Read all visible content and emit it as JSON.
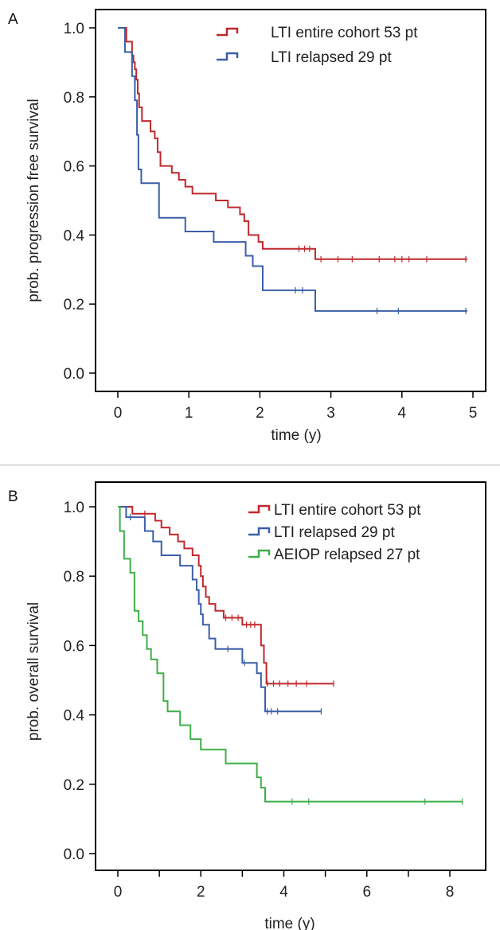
{
  "chart_data": [
    {
      "panel": "A",
      "type": "line",
      "xlabel": "time (y)",
      "ylabel": "prob. progression free survival",
      "xlim": [
        0,
        5
      ],
      "ylim": [
        0,
        1
      ],
      "xticks": [
        "0",
        "1",
        "2",
        "3",
        "4",
        "5"
      ],
      "xtick_values": [
        0,
        1,
        2,
        3,
        4,
        5
      ],
      "yticks": [
        "0.0",
        "0.2",
        "0.4",
        "0.6",
        "0.8",
        "1.0"
      ],
      "ytick_values": [
        0,
        0.2,
        0.4,
        0.6,
        0.8,
        1.0
      ],
      "legend_position": "top-right",
      "series": [
        {
          "name": "LTI entire cohort 53 pt",
          "color": "#c0282d",
          "steps": [
            [
              0,
              1.0
            ],
            [
              0.12,
              0.96
            ],
            [
              0.2,
              0.92
            ],
            [
              0.22,
              0.9
            ],
            [
              0.24,
              0.88
            ],
            [
              0.26,
              0.85
            ],
            [
              0.28,
              0.81
            ],
            [
              0.3,
              0.77
            ],
            [
              0.34,
              0.73
            ],
            [
              0.46,
              0.7
            ],
            [
              0.52,
              0.68
            ],
            [
              0.56,
              0.64
            ],
            [
              0.6,
              0.6
            ],
            [
              0.76,
              0.58
            ],
            [
              0.86,
              0.56
            ],
            [
              0.95,
              0.54
            ],
            [
              1.05,
              0.52
            ],
            [
              1.38,
              0.5
            ],
            [
              1.55,
              0.48
            ],
            [
              1.72,
              0.46
            ],
            [
              1.78,
              0.44
            ],
            [
              1.84,
              0.4
            ],
            [
              1.98,
              0.38
            ],
            [
              2.04,
              0.36
            ],
            [
              2.78,
              0.33
            ],
            [
              4.92,
              0.33
            ]
          ],
          "censors": [
            [
              2.55,
              0.36
            ],
            [
              2.63,
              0.36
            ],
            [
              2.7,
              0.36
            ],
            [
              2.86,
              0.33
            ],
            [
              3.1,
              0.33
            ],
            [
              3.3,
              0.33
            ],
            [
              3.68,
              0.33
            ],
            [
              3.9,
              0.33
            ],
            [
              4.0,
              0.33
            ],
            [
              4.1,
              0.33
            ],
            [
              4.35,
              0.33
            ],
            [
              4.9,
              0.33
            ]
          ]
        },
        {
          "name": "LTI relapsed 29 pt",
          "color": "#3a5fa8",
          "steps": [
            [
              0,
              1.0
            ],
            [
              0.1,
              0.93
            ],
            [
              0.2,
              0.86
            ],
            [
              0.24,
              0.79
            ],
            [
              0.27,
              0.69
            ],
            [
              0.29,
              0.59
            ],
            [
              0.33,
              0.55
            ],
            [
              0.58,
              0.45
            ],
            [
              0.95,
              0.41
            ],
            [
              1.35,
              0.38
            ],
            [
              1.8,
              0.34
            ],
            [
              1.9,
              0.31
            ],
            [
              2.04,
              0.24
            ],
            [
              2.78,
              0.18
            ],
            [
              4.92,
              0.18
            ]
          ],
          "censors": [
            [
              2.5,
              0.24
            ],
            [
              2.6,
              0.24
            ],
            [
              3.65,
              0.18
            ],
            [
              3.95,
              0.18
            ],
            [
              4.9,
              0.18
            ]
          ]
        }
      ]
    },
    {
      "panel": "B",
      "type": "line",
      "xlabel": "time (y)",
      "ylabel": "prob. overall survival",
      "xlim": [
        -0.5,
        8.8
      ],
      "ylim": [
        0,
        1
      ],
      "xticks": [
        "0",
        "2",
        "4",
        "6",
        "8"
      ],
      "xtick_values": [
        0,
        2,
        4,
        6,
        8
      ],
      "minor_xtick_values": [
        1,
        3,
        5,
        7
      ],
      "yticks": [
        "0.0",
        "0.2",
        "0.4",
        "0.6",
        "0.8",
        "1.0"
      ],
      "ytick_values": [
        0,
        0.2,
        0.4,
        0.6,
        0.8,
        1.0
      ],
      "legend_position": "top-right",
      "series": [
        {
          "name": "LTI entire cohort 53 pt",
          "color": "#c0282d",
          "steps": [
            [
              0,
              1.0
            ],
            [
              0.35,
              0.98
            ],
            [
              0.9,
              0.96
            ],
            [
              1.05,
              0.94
            ],
            [
              1.25,
              0.92
            ],
            [
              1.45,
              0.9
            ],
            [
              1.6,
              0.88
            ],
            [
              1.8,
              0.86
            ],
            [
              1.95,
              0.83
            ],
            [
              2.0,
              0.8
            ],
            [
              2.05,
              0.77
            ],
            [
              2.12,
              0.74
            ],
            [
              2.2,
              0.72
            ],
            [
              2.35,
              0.7
            ],
            [
              2.55,
              0.68
            ],
            [
              3.0,
              0.66
            ],
            [
              3.45,
              0.6
            ],
            [
              3.52,
              0.55
            ],
            [
              3.58,
              0.49
            ],
            [
              5.2,
              0.49
            ]
          ],
          "censors": [
            [
              0.65,
              0.98
            ],
            [
              2.6,
              0.68
            ],
            [
              2.75,
              0.68
            ],
            [
              2.9,
              0.68
            ],
            [
              3.1,
              0.66
            ],
            [
              3.2,
              0.66
            ],
            [
              3.3,
              0.66
            ],
            [
              3.6,
              0.49
            ],
            [
              3.75,
              0.49
            ],
            [
              3.9,
              0.49
            ],
            [
              4.1,
              0.49
            ],
            [
              4.3,
              0.49
            ],
            [
              4.55,
              0.49
            ],
            [
              5.2,
              0.49
            ]
          ]
        },
        {
          "name": "LTI relapsed 29 pt",
          "color": "#3a5fa8",
          "steps": [
            [
              0,
              1.0
            ],
            [
              0.2,
              0.97
            ],
            [
              0.65,
              0.93
            ],
            [
              0.85,
              0.9
            ],
            [
              1.05,
              0.86
            ],
            [
              1.5,
              0.83
            ],
            [
              1.8,
              0.79
            ],
            [
              1.9,
              0.76
            ],
            [
              1.95,
              0.72
            ],
            [
              2.0,
              0.69
            ],
            [
              2.05,
              0.66
            ],
            [
              2.2,
              0.62
            ],
            [
              2.35,
              0.59
            ],
            [
              3.0,
              0.55
            ],
            [
              3.35,
              0.52
            ],
            [
              3.45,
              0.48
            ],
            [
              3.55,
              0.41
            ],
            [
              4.9,
              0.41
            ]
          ],
          "censors": [
            [
              0.3,
              0.97
            ],
            [
              2.65,
              0.59
            ],
            [
              3.05,
              0.55
            ],
            [
              3.6,
              0.41
            ],
            [
              3.7,
              0.41
            ],
            [
              3.85,
              0.41
            ],
            [
              4.9,
              0.41
            ]
          ]
        },
        {
          "name": "AEIOP relapsed 27 pt",
          "color": "#3fae49",
          "steps": [
            [
              0,
              1.0
            ],
            [
              0.05,
              0.93
            ],
            [
              0.15,
              0.85
            ],
            [
              0.3,
              0.81
            ],
            [
              0.4,
              0.7
            ],
            [
              0.5,
              0.67
            ],
            [
              0.6,
              0.63
            ],
            [
              0.7,
              0.59
            ],
            [
              0.8,
              0.56
            ],
            [
              0.95,
              0.52
            ],
            [
              1.1,
              0.44
            ],
            [
              1.2,
              0.41
            ],
            [
              1.5,
              0.37
            ],
            [
              1.75,
              0.33
            ],
            [
              2.0,
              0.3
            ],
            [
              2.6,
              0.26
            ],
            [
              3.35,
              0.22
            ],
            [
              3.45,
              0.19
            ],
            [
              3.55,
              0.15
            ],
            [
              8.3,
              0.15
            ]
          ],
          "censors": [
            [
              4.2,
              0.15
            ],
            [
              4.6,
              0.15
            ],
            [
              7.4,
              0.15
            ],
            [
              8.3,
              0.15
            ]
          ]
        }
      ]
    }
  ],
  "panel_labels": [
    "A",
    "B"
  ]
}
